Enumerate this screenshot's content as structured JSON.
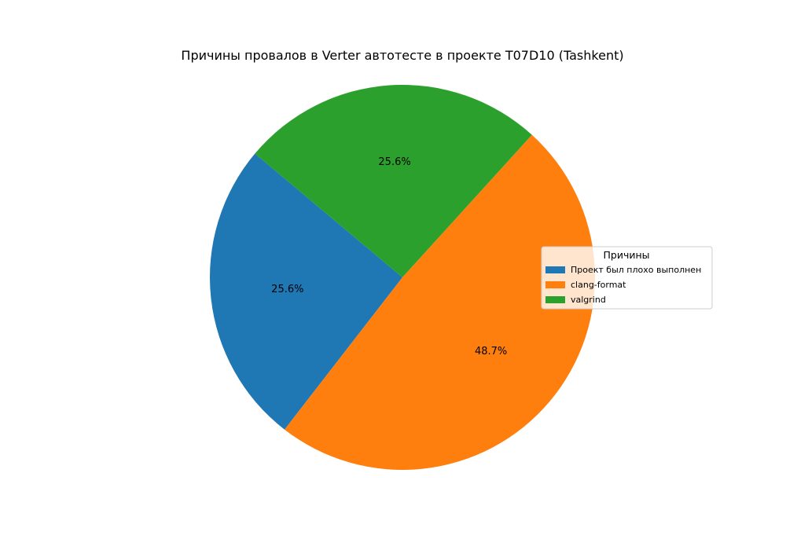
{
  "chart_data": {
    "type": "pie",
    "title": "Причины провалов в Verter автотесте в проекте T07D10 (Tashkent)",
    "slices": [
      {
        "label": "Проект был плохо выполнен",
        "value": 25.6,
        "pct_label": "25.6%",
        "color": "#1f77b4"
      },
      {
        "label": "clang-format",
        "value": 48.7,
        "pct_label": "48.7%",
        "color": "#ff7f0e"
      },
      {
        "label": "valgrind",
        "value": 25.6,
        "pct_label": "25.6%",
        "color": "#2ca02c"
      }
    ],
    "start_angle_deg": 140,
    "direction": "counterclockwise",
    "legend": {
      "title": "Причины",
      "placement": "center-right"
    }
  }
}
